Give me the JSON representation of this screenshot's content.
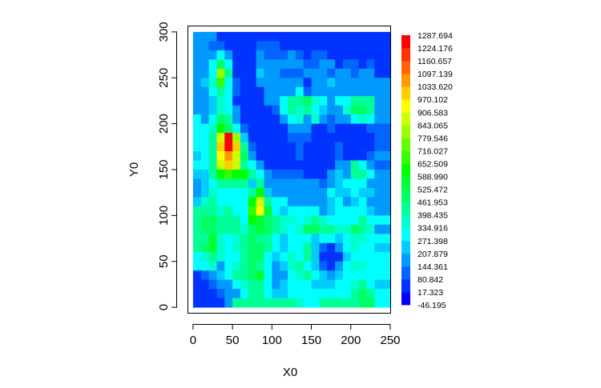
{
  "chart_data": {
    "type": "heatmap",
    "title": "",
    "xlabel": "X0",
    "ylabel": "Y0",
    "xlim": [
      -6,
      250
    ],
    "ylim": [
      -6,
      306
    ],
    "x_ticks": [
      0,
      50,
      100,
      150,
      200,
      250
    ],
    "y_ticks": [
      0,
      50,
      100,
      150,
      200,
      250,
      300
    ],
    "x_tick_labels": [
      "0",
      "50",
      "100",
      "150",
      "200",
      "250"
    ],
    "y_tick_labels": [
      "0",
      "50",
      "100",
      "150",
      "200",
      "250",
      "300"
    ],
    "grid": false,
    "legend_position": "right",
    "color_scale": {
      "breaks": [
        -46.195,
        17.323,
        80.842,
        144.361,
        207.879,
        271.398,
        334.916,
        398.435,
        461.953,
        525.472,
        588.99,
        652.509,
        716.027,
        779.546,
        843.065,
        906.583,
        970.102,
        1033.62,
        1097.139,
        1160.657,
        1224.176,
        1287.694
      ],
      "labels": [
        "-46.195",
        "17.323",
        "80.842",
        "144.361",
        "207.879",
        "271.398",
        "334.916",
        "398.435",
        "461.953",
        "525.472",
        "588.990",
        "652.509",
        "716.027",
        "779.546",
        "843.065",
        "906.583",
        "970.102",
        "1033.620",
        "1097.139",
        "1160.657",
        "1224.176",
        "1287.694"
      ],
      "colors": [
        "#0000ff",
        "#0033ff",
        "#0066ff",
        "#0099ff",
        "#00ccff",
        "#00ffff",
        "#00ffcc",
        "#00ff99",
        "#00ff66",
        "#00ff33",
        "#00ff00",
        "#33ff00",
        "#66ff00",
        "#99ff00",
        "#ccff00",
        "#ffff00",
        "#ffcc00",
        "#ff9900",
        "#ff6600",
        "#ff3300",
        "#ff0000"
      ]
    },
    "grid_spec": {
      "x_start": 0,
      "y_start": 0,
      "cell_size": 10,
      "cols": 25,
      "rows": 30
    },
    "values_rows_top_to_bottom": [
      [
        190,
        190,
        150,
        40,
        30,
        20,
        20,
        20,
        60,
        60,
        60,
        60,
        40,
        60,
        60,
        60,
        40,
        40,
        60,
        40,
        40,
        40,
        20,
        20,
        20
      ],
      [
        170,
        170,
        120,
        100,
        40,
        20,
        20,
        20,
        100,
        100,
        100,
        60,
        60,
        60,
        40,
        60,
        60,
        40,
        40,
        40,
        20,
        20,
        20,
        20,
        20
      ],
      [
        150,
        150,
        200,
        320,
        200,
        20,
        20,
        60,
        200,
        140,
        100,
        100,
        150,
        100,
        60,
        100,
        100,
        60,
        60,
        60,
        60,
        20,
        60,
        20,
        20
      ],
      [
        150,
        200,
        320,
        500,
        320,
        60,
        20,
        60,
        200,
        200,
        200,
        150,
        150,
        200,
        100,
        100,
        150,
        200,
        60,
        100,
        100,
        60,
        100,
        60,
        60
      ],
      [
        150,
        200,
        320,
        840,
        400,
        80,
        20,
        60,
        250,
        150,
        150,
        100,
        100,
        100,
        200,
        150,
        150,
        100,
        150,
        150,
        100,
        150,
        200,
        60,
        60
      ],
      [
        150,
        220,
        380,
        670,
        300,
        140,
        20,
        40,
        150,
        200,
        150,
        150,
        150,
        200,
        80,
        150,
        150,
        250,
        200,
        150,
        200,
        150,
        150,
        150,
        150
      ],
      [
        150,
        200,
        330,
        450,
        330,
        100,
        20,
        40,
        60,
        150,
        150,
        150,
        150,
        300,
        100,
        150,
        150,
        200,
        150,
        200,
        200,
        150,
        150,
        200,
        200
      ],
      [
        200,
        150,
        270,
        380,
        280,
        80,
        20,
        20,
        40,
        150,
        150,
        300,
        450,
        400,
        500,
        350,
        300,
        150,
        300,
        300,
        400,
        400,
        400,
        200,
        200
      ],
      [
        200,
        200,
        270,
        350,
        320,
        150,
        40,
        20,
        40,
        60,
        100,
        330,
        400,
        350,
        400,
        300,
        250,
        150,
        200,
        350,
        500,
        500,
        450,
        200,
        200
      ],
      [
        300,
        200,
        300,
        500,
        400,
        200,
        60,
        20,
        40,
        60,
        60,
        150,
        300,
        350,
        200,
        350,
        200,
        100,
        200,
        200,
        300,
        350,
        300,
        200,
        200
      ],
      [
        300,
        300,
        350,
        600,
        500,
        300,
        100,
        20,
        40,
        40,
        60,
        60,
        150,
        200,
        150,
        80,
        80,
        100,
        80,
        60,
        60,
        60,
        100,
        100,
        100
      ],
      [
        300,
        300,
        450,
        870,
        1290,
        800,
        250,
        20,
        40,
        40,
        40,
        40,
        100,
        100,
        100,
        80,
        60,
        60,
        80,
        60,
        60,
        60,
        60,
        100,
        100
      ],
      [
        330,
        300,
        400,
        1000,
        1250,
        1000,
        400,
        100,
        40,
        20,
        20,
        20,
        40,
        100,
        60,
        60,
        60,
        60,
        100,
        60,
        60,
        60,
        80,
        100,
        100
      ],
      [
        270,
        300,
        400,
        950,
        1050,
        900,
        500,
        200,
        80,
        20,
        20,
        20,
        60,
        100,
        60,
        60,
        60,
        60,
        100,
        60,
        60,
        60,
        100,
        150,
        150
      ],
      [
        300,
        300,
        400,
        900,
        1000,
        850,
        450,
        300,
        200,
        60,
        60,
        60,
        60,
        80,
        60,
        60,
        60,
        60,
        200,
        150,
        400,
        300,
        200,
        100,
        100
      ],
      [
        230,
        250,
        400,
        600,
        700,
        650,
        600,
        400,
        330,
        150,
        100,
        100,
        100,
        100,
        60,
        60,
        60,
        200,
        250,
        200,
        400,
        450,
        300,
        150,
        150
      ],
      [
        200,
        250,
        300,
        450,
        400,
        400,
        400,
        250,
        400,
        200,
        150,
        150,
        150,
        200,
        150,
        150,
        100,
        200,
        250,
        300,
        300,
        300,
        200,
        200,
        200
      ],
      [
        200,
        230,
        350,
        300,
        330,
        300,
        300,
        450,
        600,
        250,
        200,
        200,
        150,
        150,
        200,
        200,
        200,
        300,
        250,
        250,
        300,
        250,
        250,
        150,
        150
      ],
      [
        250,
        350,
        400,
        320,
        300,
        330,
        300,
        600,
        900,
        450,
        300,
        300,
        200,
        200,
        150,
        200,
        200,
        250,
        300,
        200,
        250,
        300,
        200,
        150,
        150
      ],
      [
        400,
        450,
        450,
        350,
        400,
        300,
        300,
        700,
        950,
        550,
        300,
        250,
        300,
        300,
        300,
        300,
        200,
        250,
        300,
        300,
        300,
        300,
        250,
        200,
        200
      ],
      [
        450,
        500,
        500,
        400,
        450,
        400,
        300,
        650,
        550,
        500,
        450,
        350,
        350,
        300,
        350,
        400,
        350,
        300,
        300,
        300,
        300,
        400,
        300,
        300,
        300
      ],
      [
        450,
        500,
        500,
        400,
        450,
        400,
        350,
        500,
        550,
        500,
        400,
        350,
        300,
        350,
        500,
        500,
        400,
        400,
        350,
        350,
        500,
        450,
        350,
        150,
        150
      ],
      [
        450,
        400,
        550,
        350,
        300,
        350,
        400,
        500,
        400,
        400,
        300,
        250,
        300,
        300,
        300,
        250,
        300,
        300,
        250,
        300,
        350,
        350,
        300,
        300,
        300
      ],
      [
        450,
        500,
        550,
        350,
        300,
        350,
        400,
        500,
        500,
        450,
        300,
        250,
        300,
        300,
        400,
        250,
        100,
        60,
        150,
        300,
        350,
        300,
        300,
        250,
        250
      ],
      [
        300,
        350,
        450,
        350,
        300,
        300,
        400,
        500,
        500,
        300,
        250,
        300,
        350,
        300,
        400,
        250,
        20,
        20,
        60,
        250,
        300,
        300,
        300,
        300,
        300
      ],
      [
        280,
        300,
        350,
        200,
        300,
        350,
        400,
        500,
        450,
        300,
        200,
        250,
        350,
        400,
        300,
        250,
        100,
        80,
        150,
        300,
        350,
        350,
        300,
        300,
        300
      ],
      [
        80,
        100,
        200,
        250,
        300,
        400,
        450,
        500,
        550,
        300,
        200,
        200,
        300,
        350,
        400,
        300,
        250,
        200,
        250,
        300,
        300,
        300,
        300,
        300,
        300
      ],
      [
        40,
        80,
        100,
        150,
        200,
        300,
        350,
        400,
        450,
        300,
        200,
        250,
        300,
        300,
        300,
        250,
        250,
        250,
        300,
        300,
        350,
        400,
        300,
        250,
        250
      ],
      [
        20,
        20,
        60,
        100,
        150,
        200,
        300,
        400,
        400,
        300,
        250,
        250,
        300,
        300,
        300,
        300,
        300,
        300,
        300,
        300,
        400,
        500,
        400,
        300,
        300
      ],
      [
        20,
        20,
        20,
        60,
        150,
        450,
        450,
        400,
        450,
        400,
        450,
        450,
        400,
        350,
        300,
        300,
        400,
        450,
        450,
        450,
        400,
        500,
        500,
        300,
        300
      ]
    ]
  }
}
